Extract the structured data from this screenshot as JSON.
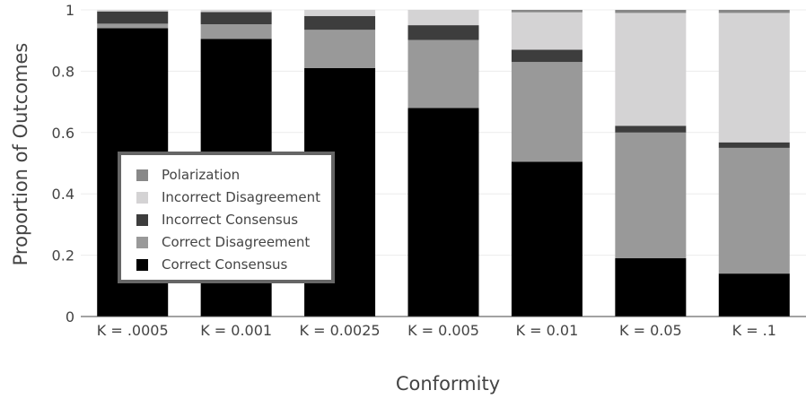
{
  "chart_data": {
    "type": "bar",
    "stacked": true,
    "title": "",
    "xlabel": "Conformity",
    "ylabel": "Proportion of Outcomes",
    "ylim": [
      0,
      1
    ],
    "yticks": [
      0,
      0.2,
      0.4,
      0.6,
      0.8,
      1
    ],
    "ytick_labels": [
      "0",
      "0.2",
      "0.4",
      "0.6",
      "0.8",
      "1"
    ],
    "grid": true,
    "legend_position": "left-middle",
    "categories": [
      "K = .0005",
      "K = 0.001",
      "K = 0.0025",
      "K = 0.005",
      "K = 0.01",
      "K = 0.05",
      "K = .1"
    ],
    "series": [
      {
        "name": "Correct Consensus",
        "color": "#000000",
        "values": [
          0.94,
          0.905,
          0.81,
          0.68,
          0.505,
          0.19,
          0.14
        ]
      },
      {
        "name": "Correct Disagreement",
        "color": "#999999",
        "values": [
          0.015,
          0.048,
          0.125,
          0.222,
          0.325,
          0.41,
          0.41
        ]
      },
      {
        "name": "Incorrect Consensus",
        "color": "#3d3d3d",
        "values": [
          0.04,
          0.04,
          0.045,
          0.048,
          0.04,
          0.022,
          0.018
        ]
      },
      {
        "name": "Incorrect Disagreement",
        "color": "#d4d3d4",
        "values": [
          0.005,
          0.007,
          0.02,
          0.05,
          0.122,
          0.368,
          0.422
        ]
      },
      {
        "name": "Polarization",
        "color": "#888888",
        "values": [
          0,
          0,
          0,
          0,
          0.008,
          0.01,
          0.01
        ]
      }
    ],
    "legend_order": [
      "Polarization",
      "Incorrect Disagreement",
      "Incorrect Consensus",
      "Correct Disagreement",
      "Correct Consensus"
    ]
  }
}
